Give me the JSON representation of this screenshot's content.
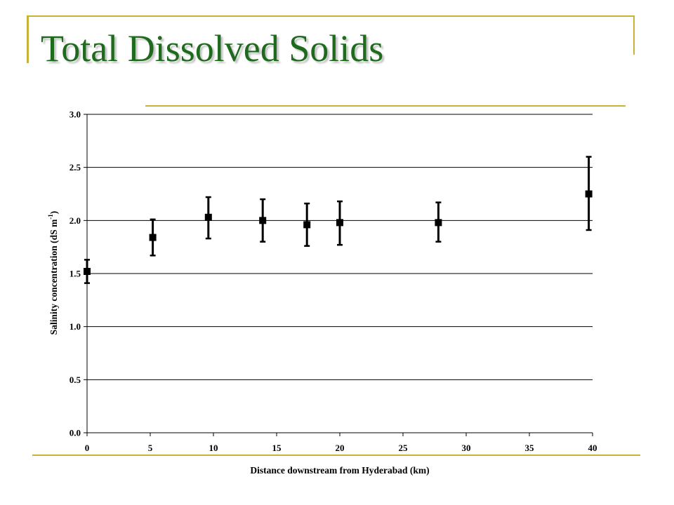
{
  "slide": {
    "title": "Total Dissolved Solids",
    "accent_color": "#c8b23a",
    "title_color": "#1e6b1e"
  },
  "chart_data": {
    "type": "scatter",
    "title": "",
    "xlabel": "Distance downstream from Hyderabad (km)",
    "ylabel": "Salinity concentration (dS m",
    "ylabel_sup": "-1",
    "ylabel_end": ")",
    "xlim": [
      0,
      40
    ],
    "ylim": [
      0.0,
      3.0
    ],
    "x_ticks": [
      "0",
      "5",
      "10",
      "15",
      "20",
      "25",
      "30",
      "35",
      "40"
    ],
    "y_ticks": [
      "0.0",
      "0.5",
      "1.0",
      "1.5",
      "2.0",
      "2.5",
      "3.0"
    ],
    "grid": "horizontal",
    "marker": "square",
    "marker_color": "#000000",
    "points": [
      {
        "x": 0.0,
        "y": 1.52,
        "y_low": 1.41,
        "y_high": 1.63
      },
      {
        "x": 5.2,
        "y": 1.84,
        "y_low": 1.67,
        "y_high": 2.01
      },
      {
        "x": 9.6,
        "y": 2.03,
        "y_low": 1.83,
        "y_high": 2.22
      },
      {
        "x": 13.9,
        "y": 2.0,
        "y_low": 1.8,
        "y_high": 2.2
      },
      {
        "x": 17.4,
        "y": 1.96,
        "y_low": 1.76,
        "y_high": 2.16
      },
      {
        "x": 20.0,
        "y": 1.98,
        "y_low": 1.77,
        "y_high": 2.18
      },
      {
        "x": 27.8,
        "y": 1.98,
        "y_low": 1.8,
        "y_high": 2.17
      },
      {
        "x": 39.7,
        "y": 2.25,
        "y_low": 1.91,
        "y_high": 2.6
      }
    ]
  }
}
